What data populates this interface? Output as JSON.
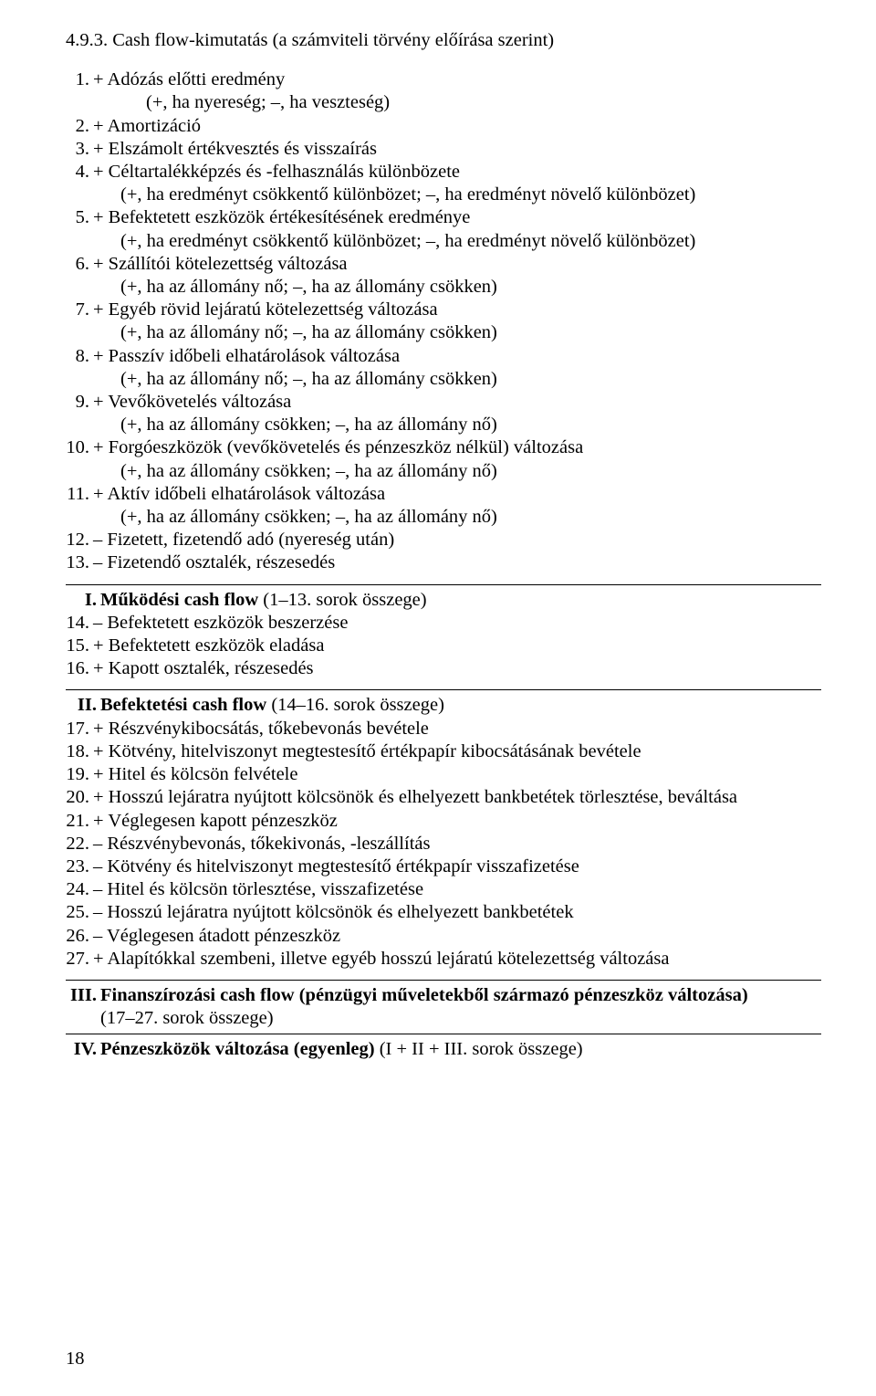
{
  "title": "4.9.3. Cash flow-kimutatás (a számviteli törvény előírása szerint)",
  "block1": [
    {
      "num": "1.",
      "text": "+ Adózás előtti eredmény",
      "paren": "(+, ha nyereség; –, ha veszteség)",
      "indent": 1
    },
    {
      "num": "2.",
      "text": "+ Amortizáció"
    },
    {
      "num": "3.",
      "text": "+ Elszámolt értékvesztés és visszaírás"
    },
    {
      "num": "4.",
      "text": "+ Céltartalékképzés és -felhasználás különbözete",
      "paren": "(+, ha eredményt csökkentő különbözet; –, ha eredményt növelő különbözet)",
      "indent": 2
    },
    {
      "num": "5.",
      "text": "+ Befektetett eszközök értékesítésének eredménye",
      "paren": "(+, ha eredményt csökkentő különbözet; –, ha eredményt növelő különbözet)",
      "indent": 2
    },
    {
      "num": "6.",
      "text": "+ Szállítói kötelezettség változása",
      "paren": "(+, ha az állomány nő; –, ha az állomány csökken)",
      "indent": 2
    },
    {
      "num": "7.",
      "text": "+ Egyéb rövid lejáratú kötelezettség változása",
      "paren": "(+, ha az állomány nő; –, ha az állomány csökken)",
      "indent": 2
    },
    {
      "num": "8.",
      "text": "+ Passzív időbeli elhatárolások változása",
      "paren": "(+, ha az állomány nő; –, ha az állomány csökken)",
      "indent": 2
    },
    {
      "num": "9.",
      "text": "+ Vevőkövetelés változása",
      "paren": "(+, ha az állomány csökken; –, ha az állomány nő)",
      "indent": 2
    },
    {
      "num": "10.",
      "text": "+ Forgóeszközök (vevőkövetelés és pénzeszköz nélkül) változása",
      "paren": "(+, ha az állomány csökken; –, ha az állomány nő)",
      "indent": 2
    },
    {
      "num": "11.",
      "text": "+ Aktív időbeli elhatárolások változása",
      "paren": "(+, ha az állomány csökken; –, ha az állomány nő)",
      "indent": 2
    },
    {
      "num": "12.",
      "text": "– Fizetett, fizetendő adó (nyereség után)"
    },
    {
      "num": "13.",
      "text": "– Fizetendő osztalék, részesedés"
    }
  ],
  "block2_head": {
    "num": "I.",
    "bold": "Működési cash flow",
    "rest": " (1–13. sorok összege)"
  },
  "block2": [
    {
      "num": "14.",
      "text": "– Befektetett eszközök beszerzése"
    },
    {
      "num": "15.",
      "text": "+ Befektetett eszközök eladása"
    },
    {
      "num": "16.",
      "text": "+ Kapott osztalék, részesedés"
    }
  ],
  "block3_head": {
    "num": "II.",
    "bold": "Befektetési cash flow",
    "rest": " (14–16. sorok összege)"
  },
  "block3": [
    {
      "num": "17.",
      "text": "+ Részvénykibocsátás, tőkebevonás bevétele"
    },
    {
      "num": "18.",
      "text": "+ Kötvény, hitelviszonyt megtestesítő értékpapír kibocsátásának bevétele"
    },
    {
      "num": "19.",
      "text": "+ Hitel és kölcsön felvétele"
    },
    {
      "num": "20.",
      "text": "+ Hosszú lejáratra nyújtott kölcsönök és elhelyezett bankbetétek törlesztése, beváltása"
    },
    {
      "num": "21.",
      "text": "+ Véglegesen kapott pénzeszköz"
    },
    {
      "num": "22.",
      "text": "– Részvénybevonás, tőkekivonás, -leszállítás"
    },
    {
      "num": "23.",
      "text": "– Kötvény és hitelviszonyt megtestesítő értékpapír visszafizetése"
    },
    {
      "num": "24.",
      "text": "– Hitel és kölcsön törlesztése, visszafizetése"
    },
    {
      "num": "25.",
      "text": "– Hosszú lejáratra nyújtott kölcsönök és elhelyezett bankbetétek"
    },
    {
      "num": "26.",
      "text": "– Véglegesen átadott pénzeszköz"
    },
    {
      "num": "27.",
      "text": "+ Alapítókkal szembeni, illetve egyéb hosszú lejáratú kötelezettség változása"
    }
  ],
  "block4_head": {
    "num": "III.",
    "bold": "Finanszírozási cash flow (pénzügyi műveletekből származó pénzeszköz változása)",
    "rest": "(17–27. sorok összege)"
  },
  "block5_head": {
    "num": "IV.",
    "bold": "Pénzeszközök változása (egyenleg)",
    "rest": " (I + II + III. sorok összege)"
  },
  "page_number": "18"
}
